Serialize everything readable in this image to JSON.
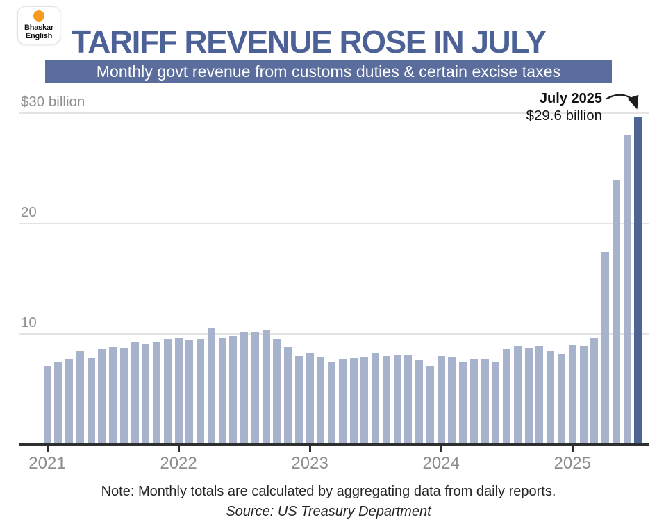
{
  "logo": {
    "line1": "Bhaskar",
    "line2": "English"
  },
  "header": {
    "title": "TARIFF REVENUE ROSE IN JULY",
    "subtitle": "Monthly govt revenue from customs duties & certain excise taxes"
  },
  "colors": {
    "title": "#4c6296",
    "subtitle_band": "#5a6d9c",
    "bar": "#a7b2cd",
    "bar_highlight": "#4d6494",
    "gridline": "#e4e4e4",
    "axis": "#2f2f2f",
    "axis_label": "#8d8d8d",
    "logo_dot": "#f59c1e"
  },
  "chart_data": {
    "type": "bar",
    "title": "TARIFF REVENUE ROSE IN JULY",
    "subtitle": "Monthly govt revenue from customs duties & certain excise taxes",
    "unit": "USD billions per month",
    "categories": [
      "Jan 2021",
      "Feb 2021",
      "Mar 2021",
      "Apr 2021",
      "May 2021",
      "Jun 2021",
      "Jul 2021",
      "Aug 2021",
      "Sep 2021",
      "Oct 2021",
      "Nov 2021",
      "Dec 2021",
      "Jan 2022",
      "Feb 2022",
      "Mar 2022",
      "Apr 2022",
      "May 2022",
      "Jun 2022",
      "Jul 2022",
      "Aug 2022",
      "Sep 2022",
      "Oct 2022",
      "Nov 2022",
      "Dec 2022",
      "Jan 2023",
      "Feb 2023",
      "Mar 2023",
      "Apr 2023",
      "May 2023",
      "Jun 2023",
      "Jul 2023",
      "Aug 2023",
      "Sep 2023",
      "Oct 2023",
      "Nov 2023",
      "Dec 2023",
      "Jan 2024",
      "Feb 2024",
      "Mar 2024",
      "Apr 2024",
      "May 2024",
      "Jun 2024",
      "Jul 2024",
      "Aug 2024",
      "Sep 2024",
      "Oct 2024",
      "Nov 2024",
      "Dec 2024",
      "Jan 2025",
      "Feb 2025",
      "Mar 2025",
      "Apr 2025",
      "May 2025",
      "Jun 2025",
      "Jul 2025"
    ],
    "values": [
      7.1,
      7.5,
      7.7,
      8.4,
      7.8,
      8.6,
      8.8,
      8.7,
      9.3,
      9.1,
      9.3,
      9.5,
      9.6,
      9.4,
      9.5,
      10.5,
      9.6,
      9.8,
      10.2,
      10.1,
      10.4,
      9.5,
      8.8,
      8.0,
      8.3,
      7.9,
      7.4,
      7.7,
      7.8,
      7.9,
      8.3,
      8.0,
      8.1,
      8.1,
      7.6,
      7.1,
      8.0,
      7.9,
      7.4,
      7.7,
      7.7,
      7.5,
      8.6,
      8.9,
      8.7,
      8.9,
      8.4,
      8.2,
      9.0,
      8.9,
      9.6,
      17.4,
      23.9,
      28.0,
      29.6
    ],
    "highlight_index": 54,
    "ylim": [
      0,
      31
    ],
    "grid": true,
    "y_ticks": [
      {
        "value": 30,
        "label": "$30 billion"
      },
      {
        "value": 20,
        "label": "20"
      },
      {
        "value": 10,
        "label": "10"
      }
    ],
    "x_tick_labels": [
      "2021",
      "2022",
      "2023",
      "2024",
      "2025"
    ],
    "annotation": {
      "title": "July 2025",
      "value_label": "$29.6 billion"
    }
  },
  "footer": {
    "note": "Note: Monthly totals are calculated by aggregating data from daily reports.",
    "source": "Source: US Treasury Department"
  }
}
